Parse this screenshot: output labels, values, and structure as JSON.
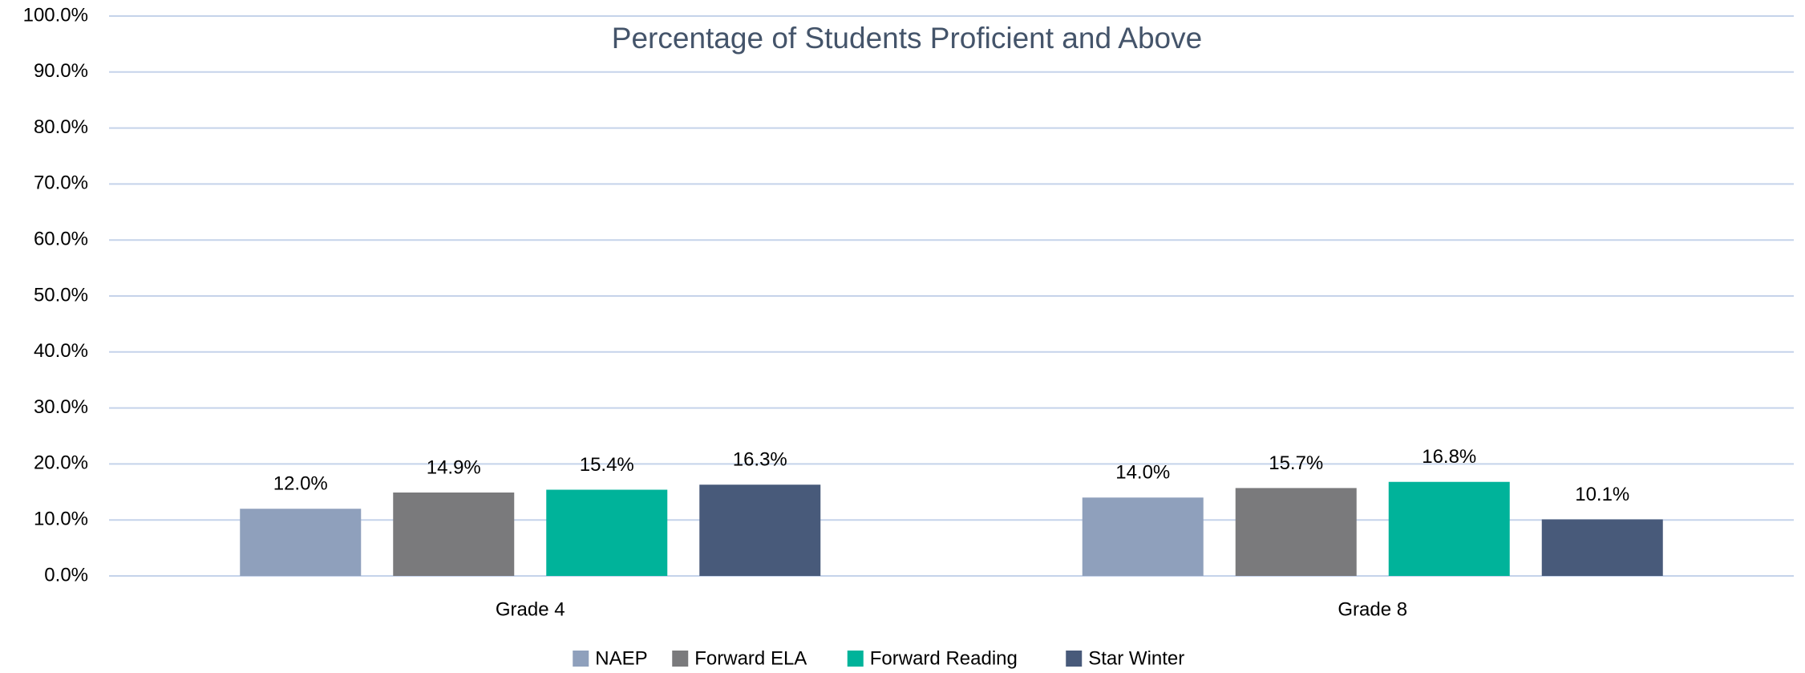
{
  "chart_data": {
    "type": "bar",
    "title": "Percentage of Students Proficient and Above",
    "categories": [
      "Grade 4",
      "Grade 8"
    ],
    "series": [
      {
        "name": "NAEP",
        "color": "#8fa0bc",
        "values": [
          12.0,
          14.0
        ],
        "value_labels": [
          "12.0%",
          "14.0%"
        ]
      },
      {
        "name": "Forward ELA",
        "color": "#7a7a7c",
        "values": [
          14.9,
          15.7
        ],
        "value_labels": [
          "14.9%",
          "15.7%"
        ]
      },
      {
        "name": "Forward Reading",
        "color": "#00b39a",
        "values": [
          15.4,
          16.8
        ],
        "value_labels": [
          "15.4%",
          "16.8%"
        ]
      },
      {
        "name": "Star Winter",
        "color": "#485a7a",
        "values": [
          16.3,
          10.1
        ],
        "value_labels": [
          "16.3%",
          "10.1%"
        ]
      }
    ],
    "ylim": [
      0,
      100
    ],
    "yticks": [
      {
        "value": 0,
        "label": "0.0%"
      },
      {
        "value": 10,
        "label": "10.0%"
      },
      {
        "value": 20,
        "label": "20.0%"
      },
      {
        "value": 30,
        "label": "30.0%"
      },
      {
        "value": 40,
        "label": "40.0%"
      },
      {
        "value": 50,
        "label": "50.0%"
      },
      {
        "value": 60,
        "label": "60.0%"
      },
      {
        "value": 70,
        "label": "70.0%"
      },
      {
        "value": 80,
        "label": "80.0%"
      },
      {
        "value": 90,
        "label": "90.0%"
      },
      {
        "value": 100,
        "label": "100.0%"
      }
    ],
    "grid": true,
    "legend": "bottom"
  }
}
